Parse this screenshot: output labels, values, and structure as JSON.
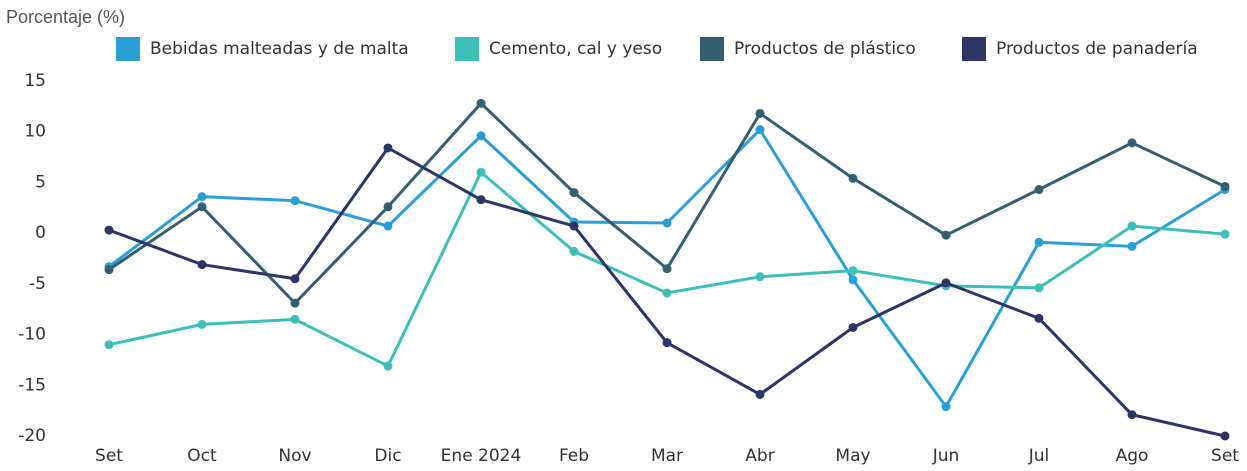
{
  "chart_data": {
    "type": "line",
    "title": "Porcentaje (%)",
    "categories": [
      "Set",
      "Oct",
      "Nov",
      "Dic",
      "Ene 2024",
      "Feb",
      "Mar",
      "Abr",
      "May",
      "Jun",
      "Jul",
      "Ago",
      "Set"
    ],
    "series": [
      {
        "name": "Bebidas malteadas y de malta",
        "color": "#2a9fd6",
        "values": [
          -3.3,
          3.6,
          3.2,
          0.7,
          9.6,
          1.1,
          1.0,
          10.2,
          -4.6,
          -17.1,
          -0.9,
          -1.3,
          4.3
        ]
      },
      {
        "name": "Cemento, cal y yeso",
        "color": "#3dbfb8",
        "values": [
          -11.0,
          -9.0,
          -8.5,
          -13.1,
          6.0,
          -1.8,
          -5.9,
          -4.3,
          -3.7,
          -5.2,
          -5.4,
          0.7,
          -0.1
        ]
      },
      {
        "name": "Productos de plástico",
        "color": "#355e6e",
        "values": [
          -3.6,
          2.6,
          -6.9,
          2.6,
          12.8,
          4.0,
          -3.5,
          11.8,
          5.4,
          -0.2,
          4.3,
          8.9,
          4.6
        ]
      },
      {
        "name": "Productos de panadería",
        "color": "#2c3566",
        "values": [
          0.3,
          -3.1,
          -4.5,
          8.4,
          3.3,
          0.7,
          -10.8,
          -15.9,
          -9.3,
          -4.9,
          -8.4,
          -17.9,
          -20.0
        ]
      }
    ],
    "ylim": [
      -20,
      15
    ],
    "yticks": [
      -20,
      -15,
      -10,
      -5,
      0,
      5,
      10,
      15
    ],
    "grid": false
  }
}
